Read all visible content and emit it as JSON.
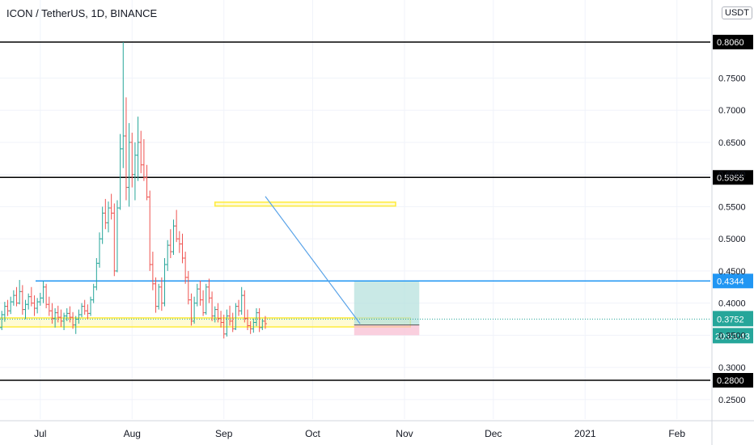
{
  "header": {
    "symbol_title": "ICON / TetherUS, 1D, BINANCE",
    "currency_label": "USDT"
  },
  "colors": {
    "up": "#26a69a",
    "down": "#ef5350",
    "grid": "#f0f3fa",
    "level_black": "#000000",
    "level_blue": "#2196f3",
    "trendline": "#5aa3e8",
    "zone_yellow": "#ffeb3b",
    "target_fill": "#b2dfdb",
    "stop_fill": "#f8bbd0",
    "current_price": "#26a69a"
  },
  "chart_data": {
    "type": "candlestick",
    "title": "ICON / TetherUS, 1D, BINANCE",
    "x_axis_labels": [
      "Jul",
      "Aug",
      "Sep",
      "Oct",
      "Nov",
      "Dec",
      "2021",
      "Feb"
    ],
    "x_axis_label_days": [
      30,
      61,
      92,
      122,
      153,
      183,
      214,
      245
    ],
    "y_axis_ticks": [
      "0.2500",
      "0.3000",
      "0.3500",
      "0.4000",
      "0.4500",
      "0.5000",
      "0.5500",
      "0.6000",
      "0.6500",
      "0.7000",
      "0.7500"
    ],
    "ylim": [
      0.235,
      0.82
    ],
    "grid": true,
    "horizontal_levels": [
      {
        "price": 0.806,
        "label": "0.8060",
        "color": "black"
      },
      {
        "price": 0.5955,
        "label": "0.5955",
        "color": "black"
      },
      {
        "price": 0.4344,
        "label": "0.4344",
        "color": "blue"
      },
      {
        "price": 0.28,
        "label": "0.2800",
        "color": "black"
      }
    ],
    "current_price": {
      "label": "0.3752",
      "value": 0.3752,
      "countdown": "20:03:43"
    },
    "zones": [
      {
        "from_day": 0,
        "to_day": 155,
        "low": 0.363,
        "high": 0.377
      },
      {
        "from_day": 89,
        "to_day": 150,
        "low": 0.551,
        "high": 0.557
      }
    ],
    "trendline": {
      "start": {
        "day": 106,
        "price": 0.566
      },
      "end": {
        "day": 138,
        "price": 0.368
      }
    },
    "position": {
      "entry": 0.366,
      "target": 0.434,
      "stop": 0.35,
      "from_day": 136,
      "to_day": 158
    },
    "candles": [
      [
        0,
        0.33,
        0.34,
        0.32,
        0.335
      ],
      [
        1,
        0.335,
        0.345,
        0.328,
        0.34
      ],
      [
        2,
        0.34,
        0.348,
        0.331,
        0.336
      ],
      [
        3,
        0.336,
        0.342,
        0.326,
        0.33
      ],
      [
        4,
        0.33,
        0.338,
        0.32,
        0.334
      ],
      [
        5,
        0.334,
        0.34,
        0.325,
        0.328
      ],
      [
        6,
        0.328,
        0.334,
        0.316,
        0.32
      ],
      [
        7,
        0.32,
        0.326,
        0.308,
        0.312
      ],
      [
        8,
        0.312,
        0.318,
        0.296,
        0.3
      ],
      [
        9,
        0.3,
        0.305,
        0.28,
        0.288
      ],
      [
        10,
        0.288,
        0.3,
        0.285,
        0.296
      ],
      [
        11,
        0.296,
        0.308,
        0.29,
        0.304
      ],
      [
        12,
        0.304,
        0.312,
        0.293,
        0.3
      ],
      [
        13,
        0.3,
        0.322,
        0.298,
        0.318
      ],
      [
        14,
        0.318,
        0.335,
        0.314,
        0.33
      ],
      [
        15,
        0.33,
        0.35,
        0.326,
        0.345
      ],
      [
        16,
        0.345,
        0.368,
        0.34,
        0.362
      ],
      [
        17,
        0.362,
        0.388,
        0.358,
        0.382
      ],
      [
        18,
        0.382,
        0.402,
        0.371,
        0.395
      ],
      [
        19,
        0.395,
        0.405,
        0.38,
        0.388
      ],
      [
        20,
        0.388,
        0.41,
        0.383,
        0.402
      ],
      [
        21,
        0.402,
        0.42,
        0.396,
        0.412
      ],
      [
        22,
        0.412,
        0.425,
        0.395,
        0.4
      ],
      [
        23,
        0.4,
        0.436,
        0.398,
        0.418
      ],
      [
        24,
        0.418,
        0.428,
        0.382,
        0.39
      ],
      [
        25,
        0.39,
        0.405,
        0.375,
        0.398
      ],
      [
        26,
        0.398,
        0.415,
        0.39,
        0.41
      ],
      [
        27,
        0.41,
        0.425,
        0.395,
        0.4
      ],
      [
        28,
        0.4,
        0.412,
        0.38,
        0.392
      ],
      [
        29,
        0.392,
        0.408,
        0.384,
        0.402
      ],
      [
        30,
        0.402,
        0.416,
        0.396,
        0.408
      ],
      [
        31,
        0.408,
        0.434,
        0.4,
        0.425
      ],
      [
        32,
        0.425,
        0.43,
        0.392,
        0.398
      ],
      [
        33,
        0.398,
        0.41,
        0.38,
        0.388
      ],
      [
        34,
        0.388,
        0.4,
        0.368,
        0.376
      ],
      [
        35,
        0.376,
        0.392,
        0.362,
        0.385
      ],
      [
        36,
        0.385,
        0.396,
        0.37,
        0.378
      ],
      [
        37,
        0.378,
        0.39,
        0.363,
        0.372
      ],
      [
        38,
        0.372,
        0.385,
        0.358,
        0.38
      ],
      [
        39,
        0.38,
        0.392,
        0.372,
        0.384
      ],
      [
        40,
        0.384,
        0.395,
        0.37,
        0.378
      ],
      [
        41,
        0.378,
        0.386,
        0.36,
        0.366
      ],
      [
        42,
        0.366,
        0.38,
        0.352,
        0.375
      ],
      [
        43,
        0.375,
        0.39,
        0.368,
        0.382
      ],
      [
        44,
        0.382,
        0.4,
        0.378,
        0.395
      ],
      [
        45,
        0.395,
        0.405,
        0.382,
        0.388
      ],
      [
        46,
        0.388,
        0.398,
        0.375,
        0.384
      ],
      [
        47,
        0.384,
        0.41,
        0.38,
        0.405
      ],
      [
        48,
        0.405,
        0.43,
        0.4,
        0.425
      ],
      [
        49,
        0.425,
        0.47,
        0.42,
        0.462
      ],
      [
        50,
        0.462,
        0.51,
        0.455,
        0.5
      ],
      [
        51,
        0.5,
        0.55,
        0.492,
        0.54
      ],
      [
        52,
        0.54,
        0.562,
        0.515,
        0.525
      ],
      [
        53,
        0.525,
        0.558,
        0.51,
        0.548
      ],
      [
        54,
        0.548,
        0.57,
        0.53,
        0.54
      ],
      [
        55,
        0.54,
        0.555,
        0.442,
        0.45
      ],
      [
        56,
        0.45,
        0.56,
        0.448,
        0.548
      ],
      [
        57,
        0.548,
        0.663,
        0.545,
        0.64
      ],
      [
        58,
        0.64,
        0.806,
        0.61,
        0.66
      ],
      [
        59,
        0.66,
        0.72,
        0.56,
        0.58
      ],
      [
        60,
        0.58,
        0.68,
        0.55,
        0.65
      ],
      [
        61,
        0.65,
        0.665,
        0.58,
        0.6
      ],
      [
        62,
        0.6,
        0.65,
        0.56,
        0.63
      ],
      [
        63,
        0.63,
        0.69,
        0.59,
        0.65
      ],
      [
        64,
        0.65,
        0.668,
        0.602,
        0.615
      ],
      [
        65,
        0.615,
        0.655,
        0.59,
        0.595
      ],
      [
        66,
        0.595,
        0.615,
        0.56,
        0.565
      ],
      [
        67,
        0.565,
        0.575,
        0.45,
        0.46
      ],
      [
        68,
        0.46,
        0.48,
        0.42,
        0.43
      ],
      [
        69,
        0.43,
        0.44,
        0.385,
        0.395
      ],
      [
        70,
        0.395,
        0.43,
        0.39,
        0.425
      ],
      [
        71,
        0.425,
        0.44,
        0.388,
        0.4
      ],
      [
        72,
        0.4,
        0.47,
        0.395,
        0.46
      ],
      [
        73,
        0.46,
        0.498,
        0.45,
        0.49
      ],
      [
        74,
        0.49,
        0.515,
        0.47,
        0.48
      ],
      [
        75,
        0.48,
        0.53,
        0.475,
        0.52
      ],
      [
        76,
        0.52,
        0.545,
        0.495,
        0.5
      ],
      [
        77,
        0.5,
        0.512,
        0.478,
        0.492
      ],
      [
        78,
        0.492,
        0.508,
        0.462,
        0.47
      ],
      [
        79,
        0.47,
        0.48,
        0.43,
        0.44
      ],
      [
        80,
        0.44,
        0.45,
        0.398,
        0.405
      ],
      [
        81,
        0.405,
        0.415,
        0.365,
        0.372
      ],
      [
        82,
        0.372,
        0.41,
        0.368,
        0.4
      ],
      [
        83,
        0.4,
        0.43,
        0.395,
        0.422
      ],
      [
        84,
        0.422,
        0.435,
        0.396,
        0.405
      ],
      [
        85,
        0.405,
        0.42,
        0.38,
        0.385
      ],
      [
        86,
        0.385,
        0.43,
        0.382,
        0.425
      ],
      [
        87,
        0.425,
        0.438,
        0.4,
        0.408
      ],
      [
        88,
        0.408,
        0.418,
        0.372,
        0.38
      ],
      [
        89,
        0.38,
        0.395,
        0.37,
        0.39
      ],
      [
        90,
        0.39,
        0.4,
        0.37,
        0.376
      ],
      [
        91,
        0.376,
        0.388,
        0.362,
        0.37
      ],
      [
        92,
        0.37,
        0.382,
        0.345,
        0.352
      ],
      [
        93,
        0.352,
        0.39,
        0.348,
        0.38
      ],
      [
        94,
        0.38,
        0.396,
        0.365,
        0.372
      ],
      [
        95,
        0.372,
        0.385,
        0.355,
        0.36
      ],
      [
        96,
        0.36,
        0.4,
        0.358,
        0.395
      ],
      [
        97,
        0.395,
        0.405,
        0.38,
        0.388
      ],
      [
        98,
        0.388,
        0.425,
        0.382,
        0.412
      ],
      [
        99,
        0.412,
        0.42,
        0.37,
        0.376
      ],
      [
        100,
        0.376,
        0.39,
        0.358,
        0.365
      ],
      [
        101,
        0.365,
        0.372,
        0.352,
        0.36
      ],
      [
        102,
        0.36,
        0.376,
        0.354,
        0.37
      ],
      [
        103,
        0.37,
        0.392,
        0.364,
        0.385
      ],
      [
        104,
        0.385,
        0.392,
        0.355,
        0.362
      ],
      [
        105,
        0.362,
        0.375,
        0.358,
        0.372
      ],
      [
        106,
        0.372,
        0.38,
        0.36,
        0.368
      ]
    ]
  }
}
